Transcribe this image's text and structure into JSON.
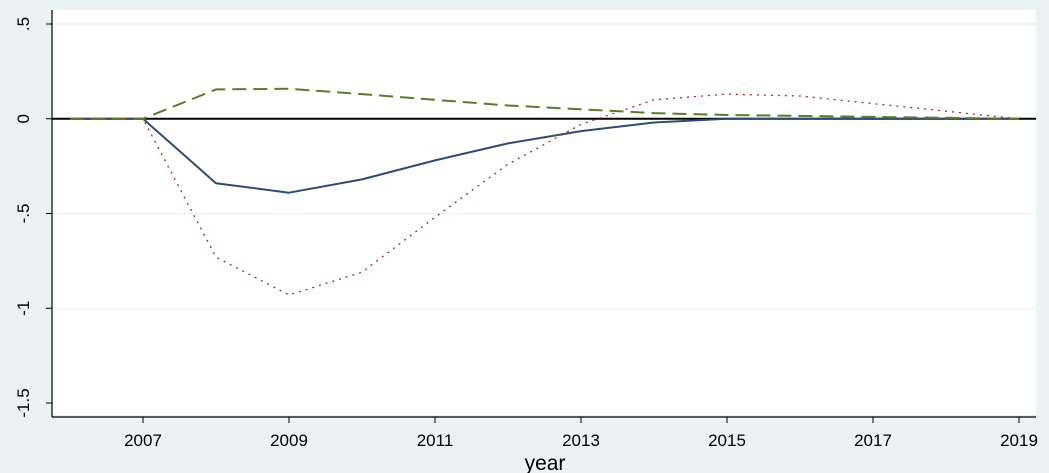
{
  "chart_data": {
    "type": "line",
    "title": "",
    "xlabel": "year",
    "ylabel": "",
    "xlim": [
      2006,
      2019
    ],
    "ylim": [
      -1.5,
      0.5
    ],
    "x_ticks": [
      2007,
      2009,
      2011,
      2013,
      2015,
      2017,
      2019
    ],
    "x_tick_labels": [
      "2007",
      "2009",
      "2011",
      "2013",
      "2015",
      "2017",
      "2019"
    ],
    "y_ticks": [
      0.5,
      0,
      -0.5,
      -1,
      -1.5
    ],
    "y_tick_labels": [
      ".5",
      "0",
      "-.5",
      "-1",
      "-1.5"
    ],
    "grid": true,
    "zero_line": true,
    "x": [
      2006,
      2007,
      2008,
      2009,
      2010,
      2011,
      2012,
      2013,
      2014,
      2015,
      2016,
      2017,
      2018,
      2019
    ],
    "series": [
      {
        "style": "solid",
        "color": "#2f4b6e",
        "values": [
          0,
          0,
          -0.34,
          -0.39,
          -0.32,
          -0.22,
          -0.13,
          -0.065,
          -0.02,
          0.0,
          0.0,
          0.0,
          0.0,
          0.0
        ]
      },
      {
        "style": "dotted",
        "color": "#a0282a",
        "values": [
          0,
          0,
          -0.73,
          -0.93,
          -0.81,
          -0.52,
          -0.24,
          -0.03,
          0.1,
          0.13,
          0.12,
          0.08,
          0.04,
          0.0
        ]
      },
      {
        "style": "dashed",
        "color": "#5b7a2c",
        "values": [
          0,
          0,
          0.155,
          0.158,
          0.13,
          0.1,
          0.07,
          0.05,
          0.03,
          0.02,
          0.015,
          0.01,
          0.005,
          0.0
        ]
      }
    ]
  },
  "colors": {
    "background": "#eaf2f3",
    "plot_area": "#ffffff",
    "grid": "#e8f0f1",
    "zero_line": "#000000"
  }
}
